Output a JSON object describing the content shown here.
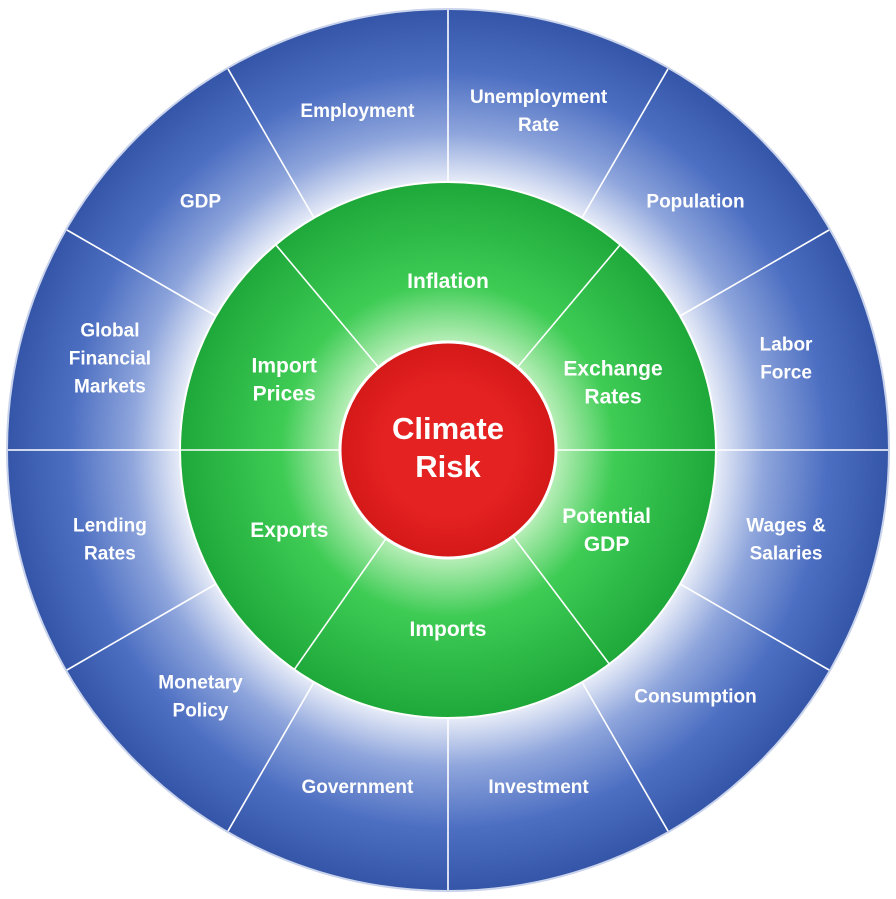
{
  "center": {
    "lines": [
      "Climate",
      "Risk"
    ]
  },
  "inner_ring": [
    {
      "lines": [
        "Inflation"
      ]
    },
    {
      "lines": [
        "Exchange",
        "Rates"
      ]
    },
    {
      "lines": [
        "Potential",
        "GDP"
      ]
    },
    {
      "lines": [
        "Imports"
      ]
    },
    {
      "lines": [
        "Exports"
      ]
    },
    {
      "lines": [
        "Import",
        "Prices"
      ]
    }
  ],
  "outer_ring": [
    {
      "lines": [
        "Unemployment",
        "Rate"
      ]
    },
    {
      "lines": [
        "Population"
      ]
    },
    {
      "lines": [
        "Labor",
        "Force"
      ]
    },
    {
      "lines": [
        "Wages &",
        "Salaries"
      ]
    },
    {
      "lines": [
        "Consumption"
      ]
    },
    {
      "lines": [
        "Investment"
      ]
    },
    {
      "lines": [
        "Government"
      ]
    },
    {
      "lines": [
        "Monetary",
        "Policy"
      ]
    },
    {
      "lines": [
        "Lending",
        "Rates"
      ]
    },
    {
      "lines": [
        "Global",
        "Financial",
        "Markets"
      ]
    },
    {
      "lines": [
        "GDP"
      ]
    },
    {
      "lines": [
        "Employment"
      ]
    }
  ]
}
